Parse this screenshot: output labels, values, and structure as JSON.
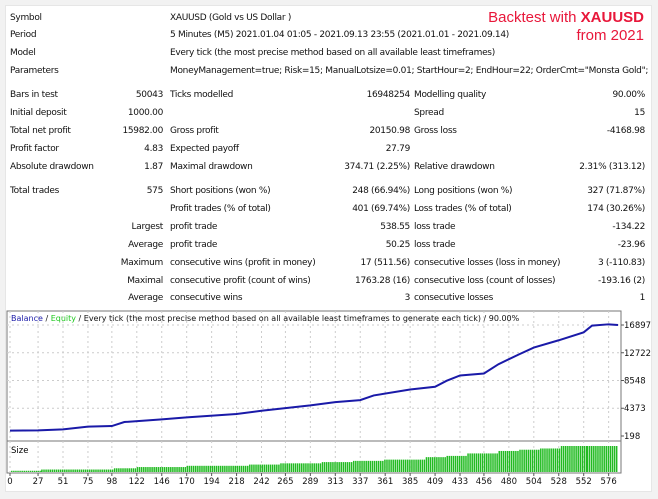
{
  "banner": {
    "line1_prefix": "Backtest with ",
    "line1_symbol": "XAUUSD",
    "line2": "from 2021"
  },
  "header": [
    {
      "label": "Symbol",
      "value": "XAUUSD (Gold vs US Dollar )"
    },
    {
      "label": "Period",
      "value": "5 Minutes (M5) 2021.01.04 01:05 - 2021.09.13 23:55 (2021.01.01 - 2021.09.14)"
    },
    {
      "label": "Model",
      "value": "Every tick (the most precise method based on all available least timeframes)"
    },
    {
      "label": "Parameters",
      "value": "MoneyManagement=true; Risk=15; ManualLotsize=0.01; StartHour=2; EndHour=22; OrderCmt=\"Monsta Gold\";"
    }
  ],
  "stats": [
    [
      "Bars in test",
      "50043",
      "Ticks modelled",
      "16948254",
      "Modelling quality",
      "90.00%"
    ],
    [
      "Initial deposit",
      "1000.00",
      "",
      "",
      "Spread",
      "15"
    ],
    [
      "Total net profit",
      "15982.00",
      "Gross profit",
      "20150.98",
      "Gross loss",
      "-4168.98"
    ],
    [
      "Profit factor",
      "4.83",
      "Expected payoff",
      "27.79",
      "",
      ""
    ],
    [
      "Absolute drawdown",
      "1.87",
      "Maximal drawdown",
      "374.71 (2.25%)",
      "Relative drawdown",
      "2.31% (313.12)"
    ],
    [
      "Total trades",
      "575",
      "Short positions (won %)",
      "248 (66.94%)",
      "Long positions (won %)",
      "327 (71.87%)"
    ],
    [
      "",
      "",
      "Profit trades (% of total)",
      "401 (69.74%)",
      "Loss trades (% of total)",
      "174 (30.26%)"
    ],
    [
      "",
      "Largest",
      "profit trade",
      "538.55",
      "loss trade",
      "-134.22"
    ],
    [
      "",
      "Average",
      "profit trade",
      "50.25",
      "loss trade",
      "-23.96"
    ],
    [
      "",
      "Maximum",
      "consecutive wins (profit in money)",
      "17 (511.56)",
      "consecutive losses (loss in money)",
      "3 (-110.83)"
    ],
    [
      "",
      "Maximal",
      "consecutive profit (count of wins)",
      "1763.28 (16)",
      "consecutive loss (count of losses)",
      "-193.16 (2)"
    ],
    [
      "",
      "Average",
      "consecutive wins",
      "3",
      "consecutive losses",
      "1"
    ]
  ],
  "chart_data": {
    "type": "line",
    "legend": {
      "balance": "Balance",
      "sep1": " / ",
      "equity": "Equity",
      "rest": " / Every tick (the most precise method based on all available least timeframes to generate each tick) / 90.00%"
    },
    "colors": {
      "balance": "#1a1aa8",
      "equity": "#1ec81e",
      "size": "#22bb22"
    },
    "y_ticks": [
      198,
      4373,
      8548,
      12722,
      16897
    ],
    "ylim": [
      198,
      16897
    ],
    "x_ticks": [
      0,
      27,
      51,
      75,
      98,
      122,
      146,
      170,
      194,
      218,
      242,
      265,
      289,
      313,
      337,
      361,
      385,
      409,
      433,
      456,
      480,
      504,
      528,
      552,
      576
    ],
    "xlim": [
      0,
      585
    ],
    "balance": [
      [
        0,
        1000
      ],
      [
        27,
        1050
      ],
      [
        51,
        1200
      ],
      [
        75,
        1600
      ],
      [
        98,
        1700
      ],
      [
        110,
        2300
      ],
      [
        146,
        2700
      ],
      [
        170,
        3000
      ],
      [
        218,
        3500
      ],
      [
        242,
        4000
      ],
      [
        289,
        4800
      ],
      [
        313,
        5300
      ],
      [
        337,
        5600
      ],
      [
        350,
        6300
      ],
      [
        385,
        7200
      ],
      [
        409,
        7600
      ],
      [
        420,
        8500
      ],
      [
        433,
        9300
      ],
      [
        456,
        9600
      ],
      [
        470,
        11000
      ],
      [
        490,
        12500
      ],
      [
        504,
        13500
      ],
      [
        528,
        14600
      ],
      [
        552,
        15800
      ],
      [
        560,
        16800
      ],
      [
        576,
        17000
      ],
      [
        585,
        16900
      ]
    ],
    "size_panel_label": "Size",
    "size": [
      [
        30,
        1
      ],
      [
        100,
        2
      ],
      [
        122,
        3
      ],
      [
        170,
        4
      ],
      [
        230,
        5
      ],
      [
        260,
        6
      ],
      [
        300,
        7
      ],
      [
        330,
        8
      ],
      [
        360,
        9
      ],
      [
        400,
        10
      ],
      [
        420,
        12
      ],
      [
        440,
        13
      ],
      [
        470,
        15
      ],
      [
        490,
        17
      ],
      [
        510,
        18
      ],
      [
        530,
        19
      ],
      [
        555,
        21
      ],
      [
        585,
        21
      ]
    ]
  }
}
